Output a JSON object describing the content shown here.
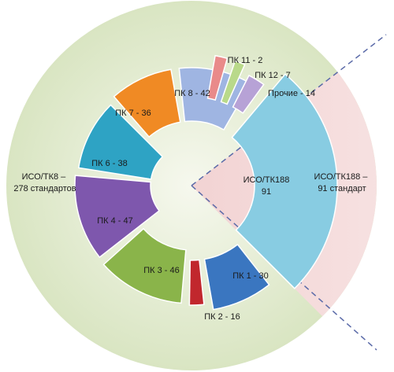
{
  "chart_data": {
    "type": "pie",
    "variant": "exploded-donut",
    "groups": [
      {
        "name_lines": [
          "ИСО/ТК8 –",
          "278 стандартов"
        ],
        "color": "#e3ead0"
      },
      {
        "name_lines": [
          "ИСО/ТК188 –",
          "91 стандарт"
        ],
        "color": "#f4d6d6"
      }
    ],
    "slices": [
      {
        "label": "ИСО/ТК188",
        "value_label": "91",
        "value": 91,
        "color": "#88cce2"
      },
      {
        "label": "ПК 1 - 30",
        "value": 30,
        "color": "#3a76c0"
      },
      {
        "label": "ПК 2 - 16",
        "value": 16,
        "color": "#c1272d"
      },
      {
        "label": "ПК 3 - 46",
        "value": 46,
        "color": "#8ab44a"
      },
      {
        "label": "ПК 4 - 47",
        "value": 47,
        "color": "#7e57ad"
      },
      {
        "label": "ПК 6 - 38",
        "value": 38,
        "color": "#2ea3c4"
      },
      {
        "label": "ПК 7 - 36",
        "value": 36,
        "color": "#f08a24"
      },
      {
        "label": "ПК 8 - 42",
        "value": 42,
        "color": "#9fb5e2"
      },
      {
        "label": "ПК 11 - 2",
        "value": 2,
        "color": "#e98a8a"
      },
      {
        "label": "ПК 12 - 7",
        "value": 7,
        "color": "#b9d98a"
      },
      {
        "label": "Прочие - 14",
        "value": 14,
        "color": "#b7a2d6"
      }
    ]
  }
}
